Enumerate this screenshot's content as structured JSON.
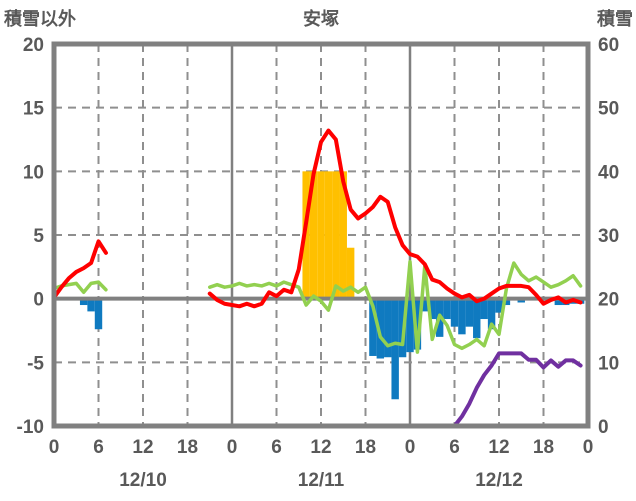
{
  "header": {
    "left_axis_title": "積雪以外",
    "station_name": "安塚",
    "right_axis_title": "積雪"
  },
  "chart_data": {
    "type": "mixed",
    "title": "安塚",
    "x_axis": {
      "total_hours": 72,
      "tick_interval_hours": 6,
      "tick_labels": [
        "0",
        "6",
        "12",
        "18",
        "0",
        "6",
        "12",
        "18",
        "0",
        "6",
        "12",
        "18",
        "0"
      ],
      "date_labels": [
        "12/10",
        "12/11",
        "12/12"
      ]
    },
    "left_axis": {
      "title": "積雪以外",
      "min": -10,
      "max": 20,
      "tick_labels": [
        "20",
        "15",
        "10",
        "5",
        "0",
        "-5",
        "-10"
      ],
      "tick_values": [
        20,
        15,
        10,
        5,
        0,
        -5,
        -10
      ]
    },
    "right_axis": {
      "title": "積雪",
      "min": 0,
      "max": 60,
      "tick_labels": [
        "60",
        "50",
        "40",
        "30",
        "20",
        "10",
        "0"
      ],
      "tick_values": [
        60,
        50,
        40,
        30,
        20,
        10,
        0
      ]
    },
    "grid": {
      "horizontal_dashed_values": [
        15,
        10,
        5,
        -5
      ],
      "vertical_solid_hours": [
        24,
        48
      ],
      "vertical_dashed_hours": [
        6,
        12,
        18,
        30,
        36,
        42,
        54,
        60,
        66
      ],
      "zero_line_value": 0
    },
    "series": [
      {
        "name": "orange-bars",
        "type": "bar",
        "axis": "left",
        "color": "#ffc000",
        "bars": [
          {
            "hour": 34,
            "value": 10
          },
          {
            "hour": 35,
            "value": 10
          },
          {
            "hour": 36,
            "value": 10
          },
          {
            "hour": 37,
            "value": 10
          },
          {
            "hour": 38,
            "value": 10
          },
          {
            "hour": 39,
            "value": 10
          },
          {
            "hour": 40,
            "value": 4
          }
        ]
      },
      {
        "name": "blue-bars",
        "type": "bar",
        "axis": "left",
        "color": "#0f7ac0",
        "bars": [
          {
            "hour": 4,
            "value": -0.5
          },
          {
            "hour": 5,
            "value": -1.0
          },
          {
            "hour": 6,
            "value": -2.4
          },
          {
            "hour": 43,
            "value": -4.5
          },
          {
            "hour": 44,
            "value": -4.7
          },
          {
            "hour": 45,
            "value": -4.6
          },
          {
            "hour": 46,
            "value": -7.9
          },
          {
            "hour": 47,
            "value": -4.6
          },
          {
            "hour": 48,
            "value": -4.2
          },
          {
            "hour": 49,
            "value": -4.0
          },
          {
            "hour": 50,
            "value": -1.0
          },
          {
            "hour": 51,
            "value": -1.6
          },
          {
            "hour": 52,
            "value": -3.0
          },
          {
            "hour": 53,
            "value": -1.6
          },
          {
            "hour": 54,
            "value": -2.2
          },
          {
            "hour": 55,
            "value": -2.8
          },
          {
            "hour": 56,
            "value": -2.2
          },
          {
            "hour": 57,
            "value": -3.1
          },
          {
            "hour": 58,
            "value": -1.6
          },
          {
            "hour": 59,
            "value": -2.4
          },
          {
            "hour": 60,
            "value": -1.1
          },
          {
            "hour": 61,
            "value": -0.5
          },
          {
            "hour": 63,
            "value": -0.3
          },
          {
            "hour": 68,
            "value": -0.5
          },
          {
            "hour": 69,
            "value": -0.5
          },
          {
            "hour": 70,
            "value": -0.4
          },
          {
            "hour": 71,
            "value": -0.4
          }
        ]
      },
      {
        "name": "green-line",
        "type": "line",
        "axis": "left",
        "color": "#92d050",
        "stroke_width": 3.5,
        "segments": [
          {
            "start_hour": 0,
            "values": [
              0.8,
              1.0,
              1.1,
              1.2,
              0.5,
              1.2,
              1.3,
              0.7
            ]
          },
          {
            "start_hour": 21,
            "values": [
              0.9,
              1.1,
              0.9,
              1.0,
              1.2,
              1.0,
              1.1,
              1.0,
              1.2,
              1.0,
              1.3,
              1.1,
              0.9,
              -0.5,
              0.2,
              -0.2,
              -0.9,
              1.0,
              0.6,
              0.9,
              0.5,
              0.9,
              -0.6,
              -3.0,
              -3.7,
              -3.5,
              -3.6,
              2.9,
              -4.2,
              2.6,
              -3.2,
              -1.3,
              -2.1,
              -3.6,
              -3.9,
              -3.6,
              -3.2,
              -3.7,
              -2.0,
              -2.8,
              0.8,
              2.8,
              1.9,
              1.4,
              1.7,
              1.3,
              0.9,
              1.1,
              1.4,
              1.8,
              1.0
            ]
          }
        ]
      },
      {
        "name": "red-line",
        "type": "line",
        "axis": "left",
        "color": "#ff0000",
        "stroke_width": 4,
        "segments": [
          {
            "start_hour": 0,
            "values": [
              0.1,
              0.9,
              1.6,
              2.1,
              2.4,
              2.8,
              4.5,
              3.6
            ]
          },
          {
            "start_hour": 21,
            "values": [
              0.4,
              -0.1,
              -0.4,
              -0.5,
              -0.6,
              -0.4,
              -0.6,
              -0.4,
              0.5,
              0.2,
              0.7,
              0.5,
              2.3,
              6.0,
              9.8,
              12.3,
              13.2,
              12.5,
              9.2,
              7.0,
              6.3,
              6.7,
              7.2,
              8.0,
              7.6,
              5.6,
              4.2,
              3.5,
              3.3,
              2.7,
              1.5,
              1.3,
              0.8,
              0.4,
              0.1,
              0.3,
              -0.2,
              0.0,
              0.4,
              0.8,
              1.0,
              1.0,
              1.0,
              0.9,
              0.3,
              -0.4,
              -0.1,
              0.1,
              -0.3,
              -0.1,
              -0.3
            ]
          }
        ]
      },
      {
        "name": "purple-line",
        "type": "line",
        "axis": "right",
        "color": "#7030a0",
        "stroke_width": 4,
        "segments": [
          {
            "start_hour": 0,
            "values": [
              0,
              0,
              0,
              0,
              0
            ]
          },
          {
            "start_hour": 16,
            "values": [
              0,
              0,
              0,
              0,
              0,
              0,
              0,
              0,
              0,
              0,
              0,
              0,
              0,
              0,
              0,
              0,
              0,
              0,
              0,
              0,
              0,
              0,
              0,
              0,
              0,
              0,
              0,
              0,
              0,
              0,
              0,
              0,
              0,
              0,
              0,
              0,
              0,
              0,
              0,
              1.5,
              3.5,
              6,
              8,
              9.5,
              11.4,
              11.4,
              11.4,
              11.4,
              10.4,
              10.4,
              9.2,
              10.3,
              9.3,
              10.3,
              10.3,
              9.5
            ]
          }
        ]
      }
    ]
  },
  "colors": {
    "frame": "#808080",
    "grid": "#8f8f8f",
    "zero_line": "#808080",
    "text": "#595959",
    "background": "#ffffff"
  }
}
